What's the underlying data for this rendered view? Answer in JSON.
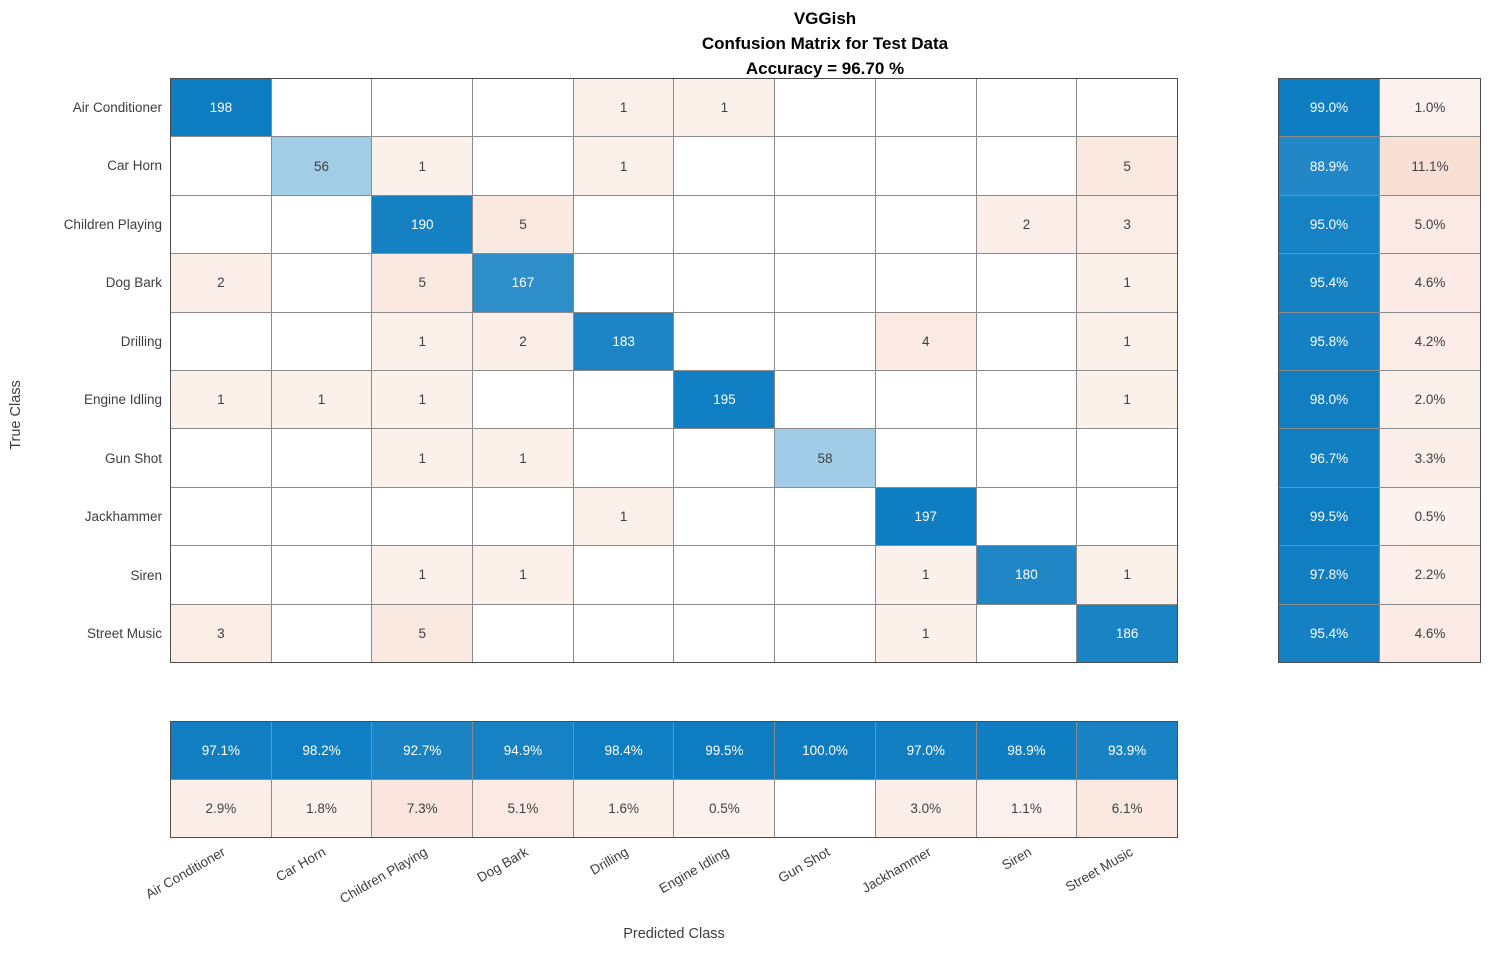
{
  "title": {
    "line1": "VGGish",
    "line2": "Confusion Matrix for Test Data",
    "line3": "Accuracy = 96.70 %"
  },
  "axes": {
    "x_label": "Predicted Class",
    "y_label": "True Class"
  },
  "chart_data": {
    "type": "heatmap",
    "title": "VGGish Confusion Matrix for Test Data, Accuracy = 96.70 %",
    "classes": [
      "Air Conditioner",
      "Car Horn",
      "Children Playing",
      "Dog Bark",
      "Drilling",
      "Engine Idling",
      "Gun Shot",
      "Jackhammer",
      "Siren",
      "Street Music"
    ],
    "matrix": [
      [
        198,
        0,
        0,
        0,
        1,
        1,
        0,
        0,
        0,
        0
      ],
      [
        0,
        56,
        1,
        0,
        1,
        0,
        0,
        0,
        0,
        5
      ],
      [
        0,
        0,
        190,
        5,
        0,
        0,
        0,
        0,
        2,
        3
      ],
      [
        2,
        0,
        5,
        167,
        0,
        0,
        0,
        0,
        0,
        1
      ],
      [
        0,
        0,
        1,
        2,
        183,
        0,
        0,
        4,
        0,
        1
      ],
      [
        1,
        1,
        1,
        0,
        0,
        195,
        0,
        0,
        0,
        1
      ],
      [
        0,
        0,
        1,
        1,
        0,
        0,
        58,
        0,
        0,
        0
      ],
      [
        0,
        0,
        0,
        0,
        1,
        0,
        0,
        197,
        0,
        0
      ],
      [
        0,
        0,
        1,
        1,
        0,
        0,
        0,
        1,
        180,
        1
      ],
      [
        3,
        0,
        5,
        0,
        0,
        0,
        0,
        1,
        0,
        186
      ]
    ],
    "row_summary_correct": [
      "99.0%",
      "88.9%",
      "95.0%",
      "95.4%",
      "95.8%",
      "98.0%",
      "96.7%",
      "99.5%",
      "97.8%",
      "95.4%"
    ],
    "row_summary_incorrect": [
      "1.0%",
      "11.1%",
      "5.0%",
      "4.6%",
      "4.2%",
      "2.0%",
      "3.3%",
      "0.5%",
      "2.2%",
      "4.6%"
    ],
    "col_summary_correct": [
      "97.1%",
      "98.2%",
      "92.7%",
      "94.9%",
      "98.4%",
      "99.5%",
      "100.0%",
      "97.0%",
      "98.9%",
      "93.9%"
    ],
    "col_summary_incorrect": [
      "2.9%",
      "1.8%",
      "7.3%",
      "5.1%",
      "1.6%",
      "0.5%",
      "",
      "3.0%",
      "1.1%",
      "6.1%"
    ],
    "axis_ranges": {
      "rows": 10,
      "cols": 10,
      "max_count": 198
    },
    "legend_position": "none",
    "grid": true,
    "colors": {
      "diagonal_blue": "#0d7cc1",
      "off_diagonal_red": "#d95319",
      "grid_line": "#8b8b8b",
      "frame": "#4c4c4c",
      "text_dark": "#404040",
      "text_light": "#ffffff",
      "background": "#ffffff"
    }
  }
}
